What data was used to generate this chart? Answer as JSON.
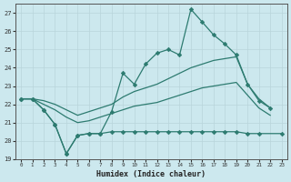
{
  "xlabel": "Humidex (Indice chaleur)",
  "x_values": [
    0,
    1,
    2,
    3,
    4,
    5,
    6,
    7,
    8,
    9,
    10,
    11,
    12,
    13,
    14,
    15,
    16,
    17,
    18,
    19,
    20,
    21,
    22,
    23
  ],
  "line_jagged": [
    22.3,
    22.3,
    21.7,
    20.9,
    19.3,
    20.3,
    20.4,
    20.4,
    21.6,
    23.7,
    23.1,
    24.2,
    24.8,
    25.0,
    24.7,
    27.2,
    26.5,
    25.8,
    25.3,
    24.7,
    23.1,
    22.2,
    21.8,
    null
  ],
  "line_flat": [
    22.3,
    22.3,
    21.7,
    20.9,
    19.3,
    20.3,
    20.4,
    20.4,
    20.5,
    20.5,
    20.5,
    20.5,
    20.5,
    20.5,
    20.5,
    20.5,
    20.5,
    20.5,
    20.5,
    20.5,
    20.4,
    20.4,
    null,
    20.4
  ],
  "line_trend_upper": [
    22.3,
    22.3,
    22.2,
    22.0,
    21.7,
    21.4,
    21.6,
    21.8,
    22.0,
    22.4,
    22.7,
    22.9,
    23.1,
    23.4,
    23.7,
    24.0,
    24.2,
    24.4,
    24.5,
    24.6,
    23.1,
    22.3,
    21.8,
    null
  ],
  "line_trend_lower": [
    22.3,
    22.3,
    22.0,
    21.7,
    21.3,
    21.0,
    21.1,
    21.3,
    21.5,
    21.7,
    21.9,
    22.0,
    22.1,
    22.3,
    22.5,
    22.7,
    22.9,
    23.0,
    23.1,
    23.2,
    22.5,
    21.8,
    21.4,
    null
  ],
  "color": "#2d7b70",
  "bg_color": "#cce8ee",
  "grid_color": "#b8d5db",
  "ylim": [
    19,
    27.5
  ],
  "yticks": [
    19,
    20,
    21,
    22,
    23,
    24,
    25,
    26,
    27
  ],
  "xlim": [
    -0.5,
    23.5
  ],
  "xticks": [
    0,
    1,
    2,
    3,
    4,
    5,
    6,
    7,
    8,
    9,
    10,
    11,
    12,
    13,
    14,
    15,
    16,
    17,
    18,
    19,
    20,
    21,
    22,
    23
  ]
}
